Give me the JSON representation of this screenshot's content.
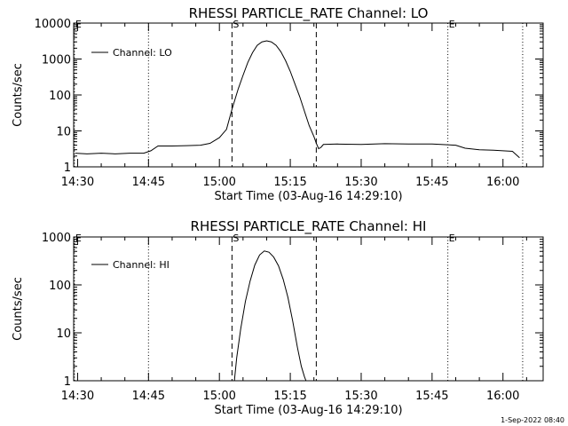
{
  "chart_data": [
    {
      "type": "line",
      "title": "RHESSI PARTICLE_RATE Channel: LO",
      "xlabel": "Start Time (03-Aug-16 14:29:10)",
      "ylabel": "Counts/sec",
      "yscale": "log",
      "ylim": [
        1,
        10000
      ],
      "xlim": [
        "14:29:10",
        "16:08:30"
      ],
      "x_ticks": [
        "14:30",
        "14:45",
        "15:00",
        "15:15",
        "15:30",
        "15:45",
        "16:00"
      ],
      "y_ticks": [
        "1",
        "10",
        "100",
        "1000",
        "10000"
      ],
      "legend": {
        "position": "top-left",
        "entries": [
          "Channel: LO"
        ]
      },
      "markers": [
        {
          "label": "E",
          "time": "14:29:20",
          "style": "dotted"
        },
        {
          "label": "",
          "time": "14:45:00",
          "style": "dotted"
        },
        {
          "label": "S",
          "time": "15:02:40",
          "style": "dashed"
        },
        {
          "label": "",
          "time": "15:20:30",
          "style": "dashed"
        },
        {
          "label": "E",
          "time": "15:48:20",
          "style": "dotted"
        },
        {
          "label": "",
          "time": "16:04:10",
          "style": "dotted"
        }
      ],
      "series": [
        {
          "x": [
            "14:29:30",
            "14:32:00",
            "14:35:00",
            "14:38:00",
            "14:41:00",
            "14:44:00",
            "14:45:30",
            "14:47:00",
            "14:50:00",
            "14:53:00",
            "14:56:00",
            "14:58:00",
            "15:00:00",
            "15:01:30",
            "15:02:40",
            "15:04:00",
            "15:05:00",
            "15:06:00",
            "15:07:00",
            "15:08:00",
            "15:09:00",
            "15:10:00",
            "15:11:00",
            "15:12:00",
            "15:13:00",
            "15:14:00",
            "15:15:00",
            "15:16:00",
            "15:17:00",
            "15:18:00",
            "15:19:00",
            "15:20:00",
            "15:20:30",
            "15:21:00",
            "15:21:30",
            "15:22:00",
            "15:25:00",
            "15:30:00",
            "15:35:00",
            "15:40:00",
            "15:45:00",
            "15:50:00",
            "15:52:00",
            "15:55:00",
            "15:58:00",
            "16:00:00",
            "16:02:00",
            "16:03:30"
          ],
          "y": [
            2.4,
            2.3,
            2.4,
            2.3,
            2.4,
            2.4,
            2.8,
            3.8,
            3.8,
            3.9,
            4.0,
            4.5,
            6.5,
            11,
            40,
            150,
            350,
            800,
            1500,
            2400,
            3000,
            3200,
            3000,
            2400,
            1600,
            900,
            450,
            200,
            90,
            35,
            14,
            7,
            4.5,
            3.2,
            3.5,
            4.2,
            4.3,
            4.2,
            4.4,
            4.3,
            4.3,
            4.0,
            3.3,
            3.0,
            2.9,
            2.8,
            2.7,
            1.8
          ]
        }
      ]
    },
    {
      "type": "line",
      "title": "RHESSI PARTICLE_RATE Channel: HI",
      "xlabel": "Start Time (03-Aug-16 14:29:10)",
      "ylabel": "Counts/sec",
      "yscale": "log",
      "ylim": [
        1,
        1000
      ],
      "xlim": [
        "14:29:10",
        "16:08:30"
      ],
      "x_ticks": [
        "14:30",
        "14:45",
        "15:00",
        "15:15",
        "15:30",
        "15:45",
        "16:00"
      ],
      "y_ticks": [
        "1",
        "10",
        "100",
        "1000"
      ],
      "legend": {
        "position": "top-left",
        "entries": [
          "Channel: HI"
        ]
      },
      "markers": [
        {
          "label": "E",
          "time": "14:29:20",
          "style": "dotted"
        },
        {
          "label": "",
          "time": "14:45:00",
          "style": "dotted"
        },
        {
          "label": "S",
          "time": "15:02:40",
          "style": "dashed"
        },
        {
          "label": "",
          "time": "15:20:30",
          "style": "dashed"
        },
        {
          "label": "E",
          "time": "15:48:20",
          "style": "dotted"
        },
        {
          "label": "",
          "time": "16:04:10",
          "style": "dotted"
        }
      ],
      "series": [
        {
          "x": [
            "15:03:10",
            "15:03:40",
            "15:04:30",
            "15:05:30",
            "15:06:30",
            "15:07:30",
            "15:08:30",
            "15:09:30",
            "15:10:30",
            "15:11:30",
            "15:12:30",
            "15:13:30",
            "15:14:30",
            "15:15:30",
            "15:16:30",
            "15:17:20",
            "15:18:00",
            "15:18:20"
          ],
          "y": [
            1,
            3,
            12,
            45,
            120,
            260,
            420,
            510,
            480,
            380,
            250,
            130,
            55,
            18,
            5,
            2,
            1.2,
            1
          ]
        }
      ]
    }
  ],
  "footer": {
    "timestamp": "1-Sep-2022 08:40"
  }
}
